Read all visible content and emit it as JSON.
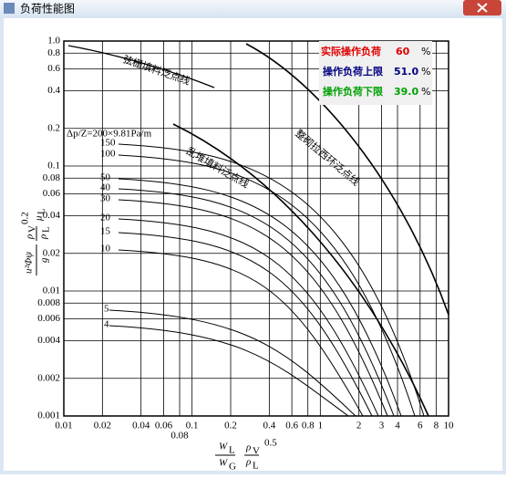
{
  "window": {
    "title": "负荷性能图"
  },
  "loads": [
    {
      "label": "实际操作负荷",
      "value": "60",
      "unit": "%"
    },
    {
      "label": "操作负荷上限",
      "value": "51.0",
      "unit": "%"
    },
    {
      "label": "操作负荷下限",
      "value": "39.0",
      "unit": "%"
    }
  ],
  "chart": {
    "xticks": [
      0.01,
      0.02,
      0.04,
      0.06,
      0.08,
      0.1,
      0.2,
      0.4,
      0.6,
      0.8,
      1,
      2,
      3,
      4,
      6,
      8,
      10
    ],
    "yticks": [
      {
        "value": 1,
        "label": "1.0"
      },
      0.8,
      0.6,
      0.4,
      0.2,
      0.1,
      0.08,
      0.06,
      0.04,
      0.02,
      0.01,
      0.008,
      0.006,
      0.004,
      0.002,
      0.001
    ],
    "x_label": {
      "num": "W",
      "num_sub": "L",
      "den": "W",
      "den_sub": "G",
      "rho_num": "ρ",
      "rho_num_sub": "V",
      "rho_den": "ρ",
      "rho_den_sub": "L",
      "power": "0.5"
    },
    "y_label": {
      "num": "u²Φψ",
      "den": "g",
      "rho_num": "ρ",
      "rho_num_sub": "V",
      "rho_den": "ρ",
      "rho_den_sub": "L",
      "power": "0.2",
      "mu": "μ",
      "mu_sub": "L"
    },
    "flood_lines": [
      "弦栅填料泛点线",
      "乱堆填料泛点线",
      "整砌拉西环泛点线"
    ],
    "pressure_title": "Δp/Z=200×9.81Pa/m",
    "pressure_curves": [
      "150",
      "100",
      "50",
      "40",
      "30",
      "20",
      "15",
      "10",
      "5",
      "4"
    ]
  }
}
